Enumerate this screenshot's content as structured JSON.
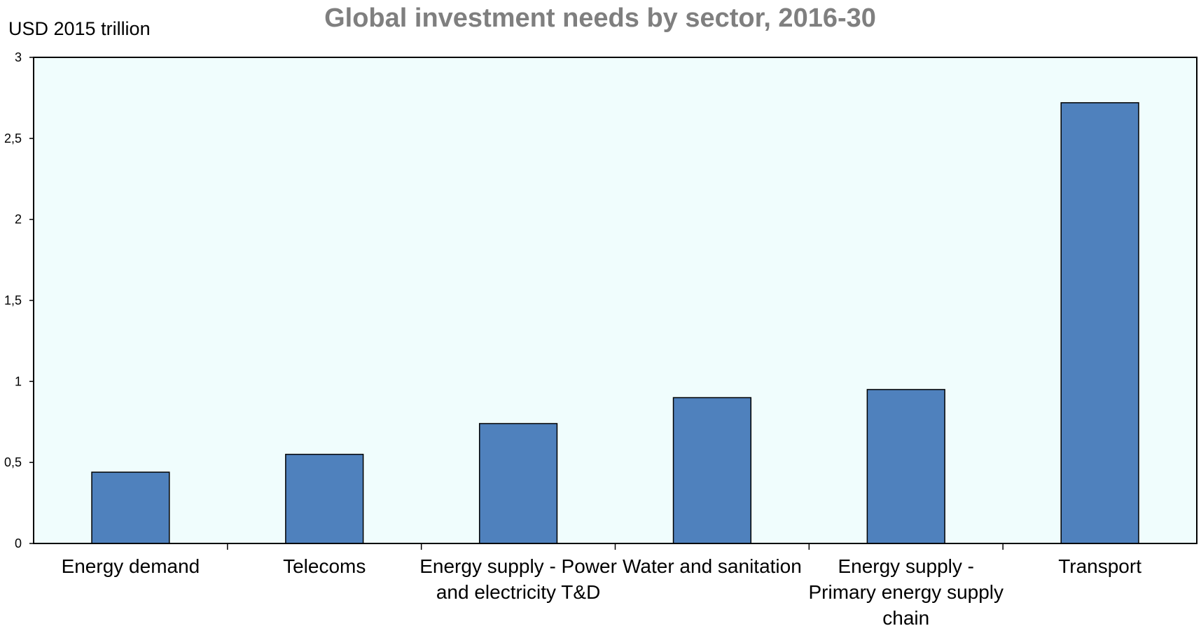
{
  "chart_data": {
    "type": "bar",
    "title": "Global investment needs by sector, 2016-30",
    "ylabel": "USD 2015 trillion",
    "xlabel": "",
    "categories": [
      [
        "Energy demand"
      ],
      [
        "Telecoms"
      ],
      [
        "Energy supply - Power",
        "and electricity T&D"
      ],
      [
        "Water and sanitation"
      ],
      [
        "Energy supply -",
        "Primary energy supply",
        "chain"
      ],
      [
        "Transport"
      ]
    ],
    "values": [
      0.44,
      0.55,
      0.74,
      0.9,
      0.95,
      2.72
    ],
    "ylim": [
      0,
      3
    ],
    "yticks": [
      "0",
      "0,5",
      "1",
      "1,5",
      "2",
      "2,5",
      "3"
    ],
    "grid": false,
    "legend": "none",
    "colors": {
      "bar": "#4f81bd",
      "bar_stroke": "#000000",
      "plot_background": "#f0fdfd",
      "title": "#7f7f7f"
    }
  }
}
